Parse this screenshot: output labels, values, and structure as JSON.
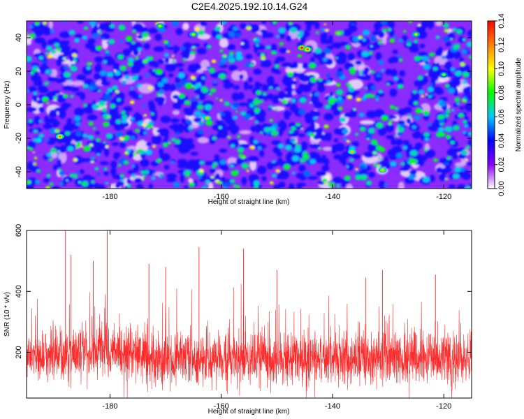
{
  "title": "C2E4.2025.192.10.14.G24",
  "chart_data": [
    {
      "type": "heatmap",
      "xlabel": "Height of straight line (km)",
      "ylabel": "Frequency (Hz)",
      "xlim": [
        -195,
        -115
      ],
      "ylim": [
        -50,
        50
      ],
      "x_ticks": [
        "-180",
        "-160",
        "-140",
        "-120"
      ],
      "y_ticks": [
        "40",
        "20",
        "0",
        "-20",
        "-40"
      ],
      "colorbar": {
        "label": "Normalized spectral amplitude",
        "range": [
          0,
          0.14
        ],
        "ticks": [
          "0.00",
          "0.02",
          "0.04",
          "0.06",
          "0.08",
          "0.10",
          "0.12",
          "0.14"
        ],
        "colors": [
          "#ffffff",
          "#8c00ff",
          "#0000ff",
          "#00c8ff",
          "#00ff00",
          "#ffff00",
          "#ff8000",
          "#ff0000"
        ]
      },
      "hotspots": [
        {
          "x": -145.5,
          "y": 34,
          "v": 0.14
        },
        {
          "x": -144.5,
          "y": 33,
          "v": 0.13
        },
        {
          "x": -189,
          "y": -19,
          "v": 0.12
        },
        {
          "x": -162.5,
          "y": -8,
          "v": 0.11
        },
        {
          "x": -131,
          "y": -39,
          "v": 0.11
        },
        {
          "x": -136.5,
          "y": -28,
          "v": 0.11
        },
        {
          "x": -125,
          "y": 42,
          "v": 0.1
        },
        {
          "x": -171,
          "y": 47,
          "v": 0.1
        },
        {
          "x": -165,
          "y": 42,
          "v": 0.1
        },
        {
          "x": -120,
          "y": 18,
          "v": 0.09
        }
      ]
    },
    {
      "type": "line",
      "xlabel": "Height of straight line (km)",
      "ylabel": "SNR (10 * v/v)",
      "xlim": [
        -195,
        -115
      ],
      "ylim": [
        50,
        600
      ],
      "x_ticks": [
        "-180",
        "-160",
        "-140",
        "-120"
      ],
      "y_ticks": [
        "600",
        "400",
        "200"
      ],
      "color": "#ff2a2a",
      "baseline": 175,
      "peaks": [
        {
          "x": -188,
          "y": 600
        },
        {
          "x": -180.5,
          "y": 600
        },
        {
          "x": -164,
          "y": 545
        },
        {
          "x": -156,
          "y": 540
        },
        {
          "x": -187,
          "y": 520
        },
        {
          "x": -183,
          "y": 500
        },
        {
          "x": -173,
          "y": 490
        },
        {
          "x": -170,
          "y": 480
        },
        {
          "x": -150,
          "y": 470
        },
        {
          "x": -131,
          "y": 470
        },
        {
          "x": -121.5,
          "y": 455
        },
        {
          "x": -134,
          "y": 445
        }
      ]
    }
  ]
}
